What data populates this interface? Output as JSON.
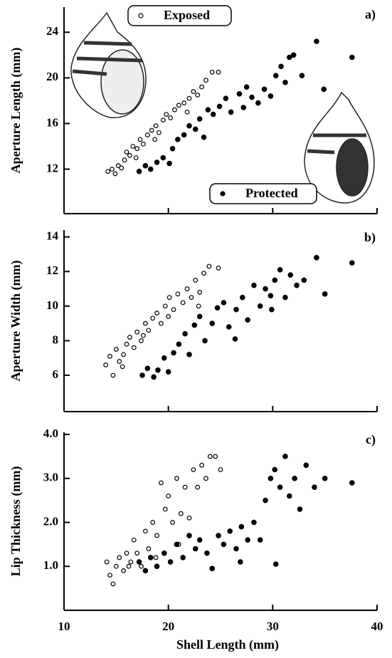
{
  "chart_data": [
    {
      "type": "scatter",
      "panel_label": "a)",
      "ylabel": "Aperture Length (mm)",
      "xlim": [
        10,
        40
      ],
      "xticks": [
        10,
        20,
        30,
        40
      ],
      "ylim": [
        8.1,
        26.2
      ],
      "yticks": [
        12,
        16,
        20,
        24
      ],
      "legend": true,
      "series": [
        {
          "name": "Exposed",
          "color": "#000000",
          "marker": "open",
          "x": [
            14.2,
            14.6,
            14.9,
            15.2,
            15.5,
            15.8,
            16.0,
            16.3,
            16.6,
            17.0,
            17.3,
            17.6,
            18.0,
            18.4,
            18.8,
            19.1,
            19.5,
            19.8,
            20.2,
            20.6,
            21.0,
            21.5,
            22.0,
            22.4,
            22.8,
            23.2,
            23.6,
            24.2,
            24.8,
            16.9,
            18.7,
            21.8
          ],
          "values": [
            11.8,
            12.0,
            11.6,
            12.3,
            12.1,
            12.8,
            13.5,
            13.2,
            14.0,
            13.8,
            14.6,
            14.2,
            15.0,
            15.4,
            15.8,
            15.2,
            16.3,
            16.8,
            16.5,
            17.2,
            17.6,
            17.8,
            18.2,
            18.8,
            18.5,
            19.2,
            19.8,
            20.5,
            20.5,
            13.0,
            14.6,
            17.0
          ]
        },
        {
          "name": "Protected",
          "color": "#000000",
          "marker": "filled",
          "x": [
            17.2,
            17.8,
            18.3,
            18.9,
            19.5,
            20.1,
            20.4,
            20.9,
            21.5,
            22.0,
            22.6,
            23.0,
            23.8,
            24.3,
            24.9,
            25.5,
            26.0,
            26.8,
            27.5,
            28.0,
            28.6,
            29.2,
            29.8,
            30.3,
            30.8,
            31.2,
            31.6,
            32.0,
            32.8,
            34.2,
            34.9,
            37.6,
            23.4,
            27.2
          ],
          "values": [
            11.8,
            12.3,
            12.0,
            12.6,
            13.0,
            12.5,
            13.8,
            14.6,
            15.0,
            15.8,
            15.5,
            16.4,
            17.2,
            16.8,
            17.5,
            18.2,
            17.0,
            18.6,
            19.2,
            18.3,
            17.8,
            19.0,
            18.4,
            20.2,
            21.0,
            19.6,
            21.8,
            22.0,
            20.2,
            23.2,
            19.0,
            21.8,
            14.8,
            17.4
          ]
        }
      ]
    },
    {
      "type": "scatter",
      "panel_label": "b)",
      "ylabel": "Aperture Width (mm)",
      "xlim": [
        10,
        40
      ],
      "xticks": [
        10,
        20,
        30,
        40
      ],
      "ylim": [
        3.9,
        14.4
      ],
      "yticks": [
        6,
        8,
        10,
        12,
        14
      ],
      "legend": false,
      "series": [
        {
          "name": "Exposed",
          "color": "#000000",
          "marker": "open",
          "x": [
            14.0,
            14.4,
            14.7,
            15.0,
            15.3,
            15.7,
            16.0,
            16.3,
            16.7,
            17.0,
            17.4,
            17.8,
            18.1,
            18.5,
            18.9,
            19.3,
            19.7,
            20.1,
            20.5,
            20.9,
            21.4,
            21.8,
            22.2,
            22.6,
            23.0,
            23.4,
            23.9,
            24.8,
            15.6,
            17.6,
            20.0,
            22.9
          ],
          "values": [
            6.6,
            7.1,
            6.0,
            7.5,
            6.8,
            7.2,
            7.8,
            8.2,
            7.6,
            8.5,
            8.0,
            9.0,
            8.6,
            9.3,
            9.6,
            9.0,
            10.0,
            10.5,
            9.8,
            10.7,
            10.2,
            11.0,
            10.5,
            11.5,
            10.8,
            11.9,
            12.3,
            12.2,
            6.5,
            8.3,
            9.4,
            10.0
          ]
        },
        {
          "name": "Protected",
          "color": "#000000",
          "marker": "filled",
          "x": [
            17.5,
            18.0,
            18.6,
            19.0,
            19.6,
            20.0,
            20.5,
            21.0,
            21.6,
            22.0,
            22.5,
            23.0,
            23.5,
            24.2,
            24.7,
            25.3,
            25.8,
            26.5,
            27.1,
            27.6,
            28.2,
            28.8,
            29.3,
            29.8,
            30.2,
            30.7,
            31.2,
            31.7,
            32.3,
            33.0,
            34.2,
            35.0,
            37.6,
            26.4,
            29.9
          ],
          "values": [
            6.0,
            6.4,
            5.9,
            6.3,
            7.0,
            6.2,
            7.3,
            7.8,
            8.4,
            7.2,
            8.9,
            9.4,
            8.0,
            9.0,
            9.9,
            10.2,
            8.8,
            9.8,
            10.5,
            9.2,
            11.2,
            10.0,
            11.0,
            10.6,
            11.5,
            12.1,
            10.5,
            11.8,
            11.2,
            11.5,
            12.8,
            10.7,
            12.5,
            8.1,
            9.8
          ]
        }
      ]
    },
    {
      "type": "scatter",
      "panel_label": "c)",
      "ylabel": "Lip Thickness (mm)",
      "xlabel": "Shell Length (mm)",
      "xlim": [
        10,
        40
      ],
      "xticks": [
        10,
        20,
        30,
        40
      ],
      "ylim": [
        0,
        4.05
      ],
      "yticks": [
        {
          "value": 1,
          "label": "1.0"
        },
        {
          "value": 2,
          "label": "2.0"
        },
        {
          "value": 3,
          "label": "3.0"
        },
        {
          "value": 4,
          "label": "4.0"
        }
      ],
      "legend": false,
      "series": [
        {
          "name": "Exposed",
          "color": "#000000",
          "marker": "open",
          "x": [
            14.1,
            14.4,
            14.7,
            15.0,
            15.3,
            15.7,
            16.0,
            16.4,
            16.7,
            17.0,
            17.4,
            17.8,
            18.1,
            18.5,
            18.9,
            19.3,
            19.7,
            20.0,
            20.4,
            20.8,
            21.2,
            21.6,
            22.0,
            22.4,
            22.8,
            23.2,
            23.6,
            24.0,
            24.5,
            25.0,
            16.2,
            18.8,
            21.0
          ],
          "values": [
            1.1,
            0.8,
            0.6,
            1.0,
            1.2,
            0.9,
            1.3,
            1.1,
            1.6,
            1.3,
            1.0,
            1.8,
            1.4,
            2.0,
            1.7,
            2.9,
            2.3,
            2.6,
            2.0,
            3.0,
            2.2,
            2.8,
            2.1,
            3.2,
            2.8,
            3.3,
            3.0,
            3.5,
            3.5,
            3.2,
            1.0,
            1.2,
            1.5
          ]
        },
        {
          "name": "Protected",
          "color": "#000000",
          "marker": "filled",
          "x": [
            17.2,
            17.8,
            18.3,
            18.9,
            19.6,
            20.2,
            20.8,
            21.4,
            22.0,
            22.6,
            23.0,
            23.7,
            24.2,
            24.8,
            25.3,
            25.9,
            26.5,
            27.0,
            27.6,
            28.2,
            28.8,
            29.3,
            29.8,
            30.2,
            30.3,
            30.7,
            31.2,
            31.6,
            32.1,
            32.6,
            33.2,
            34.0,
            35.0,
            37.6,
            26.9
          ],
          "values": [
            1.1,
            0.9,
            1.2,
            1.0,
            1.3,
            1.1,
            1.5,
            1.2,
            1.7,
            1.4,
            1.6,
            1.3,
            0.95,
            1.7,
            1.5,
            1.8,
            1.4,
            1.9,
            1.6,
            2.0,
            1.6,
            2.5,
            3.0,
            3.2,
            1.05,
            2.8,
            3.5,
            2.6,
            3.0,
            2.3,
            3.3,
            2.8,
            3.0,
            2.9,
            1.1
          ]
        }
      ]
    }
  ]
}
